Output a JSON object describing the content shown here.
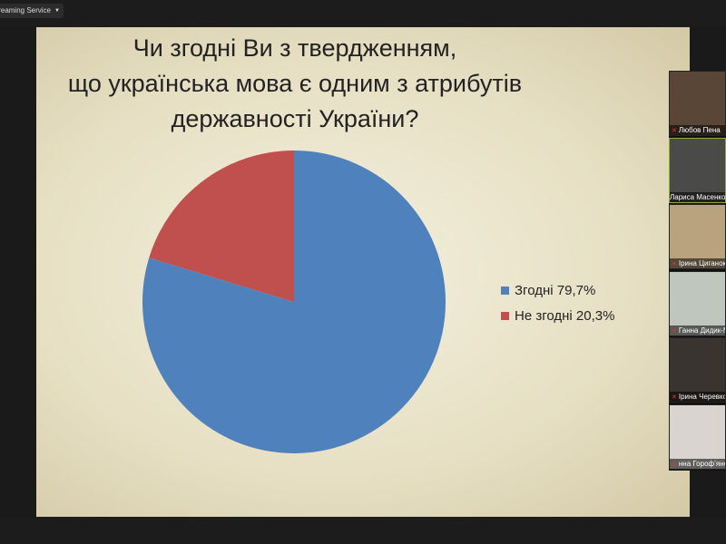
{
  "topbar": {
    "streaming_label": "e Streaming Service",
    "dropdown_icon": "caret-down-icon"
  },
  "slide": {
    "title_lines": [
      "Чи згодні Ви з твердженням,",
      "що українська мова є одним з атрибутів",
      "державності України?"
    ]
  },
  "chart_data": {
    "type": "pie",
    "title": "Чи згодні Ви з твердженням, що українська мова є одним з атрибутів державності України?",
    "legend_position": "right",
    "slices": [
      {
        "label": "Згодні 79,7%",
        "name": "Згодні",
        "value": 79.7,
        "color": "#4f81bd"
      },
      {
        "label": "Не згодні 20,3%",
        "name": "Не згодні",
        "value": 20.3,
        "color": "#c0504d"
      }
    ]
  },
  "participants": [
    {
      "name": "Любов Пена",
      "muted": true,
      "bg": "#5a4636"
    },
    {
      "name": "Лариса Масенко",
      "muted": false,
      "bg": "#4a4a48",
      "active": true
    },
    {
      "name": "Ірина Циганок",
      "muted": true,
      "bg": "#b9a27e"
    },
    {
      "name": "Ганна Дидик-М",
      "muted": true,
      "bg": "#bfc6bd"
    },
    {
      "name": "Ірина Черевко",
      "muted": true,
      "bg": "#3a3430"
    },
    {
      "name": "нна Горофʼяно",
      "muted": true,
      "bg": "#d9d4cf"
    }
  ]
}
